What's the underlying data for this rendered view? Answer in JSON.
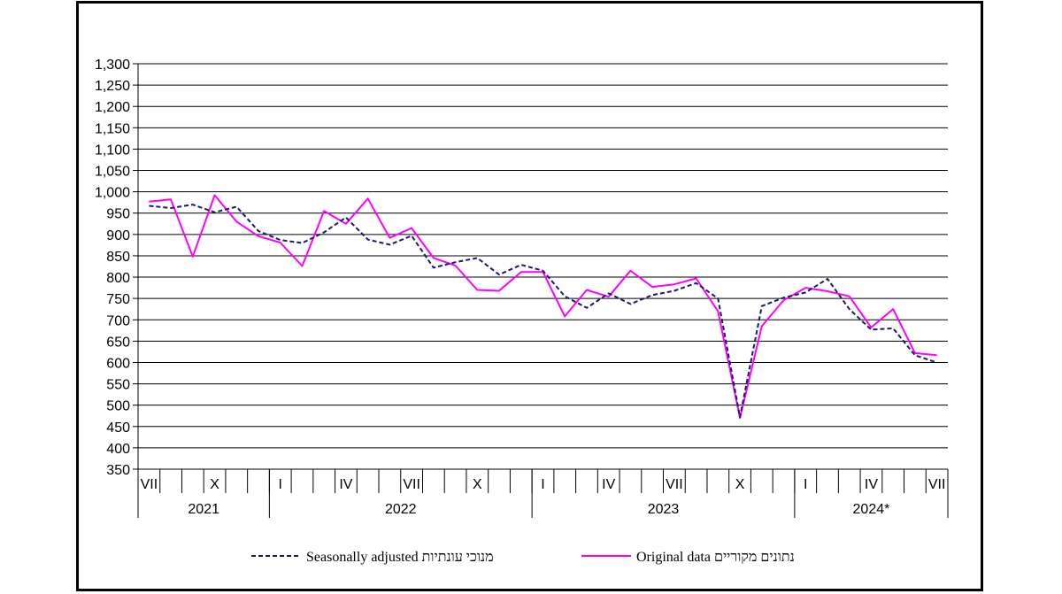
{
  "chart_data": {
    "type": "line",
    "ylim": [
      350,
      1300
    ],
    "y_ticks": [
      350,
      400,
      450,
      500,
      550,
      600,
      650,
      700,
      750,
      800,
      850,
      900,
      950,
      1000,
      1050,
      1100,
      1150,
      1200,
      1250,
      1300
    ],
    "y_tick_labels": [
      "350",
      "400",
      "450",
      "500",
      "550",
      "600",
      "650",
      "700",
      "750",
      "800",
      "850",
      "900",
      "950",
      "1,000",
      "1,050",
      "1,100",
      "1,150",
      "1,200",
      "1,250",
      "1,300"
    ],
    "x": [
      "2021-07",
      "2021-08",
      "2021-09",
      "2021-10",
      "2021-11",
      "2021-12",
      "2022-01",
      "2022-02",
      "2022-03",
      "2022-04",
      "2022-05",
      "2022-06",
      "2022-07",
      "2022-08",
      "2022-09",
      "2022-10",
      "2022-11",
      "2022-12",
      "2023-01",
      "2023-02",
      "2023-03",
      "2023-04",
      "2023-05",
      "2023-06",
      "2023-07",
      "2023-08",
      "2023-09",
      "2023-10",
      "2023-11",
      "2023-12",
      "2024-01",
      "2024-02",
      "2024-03",
      "2024-04",
      "2024-05",
      "2024-06",
      "2024-07"
    ],
    "month_labels": [
      {
        "month": "2021-07",
        "label": "VII"
      },
      {
        "month": "2021-10",
        "label": "X"
      },
      {
        "month": "2022-01",
        "label": "I"
      },
      {
        "month": "2022-04",
        "label": "IV"
      },
      {
        "month": "2022-07",
        "label": "VII"
      },
      {
        "month": "2022-10",
        "label": "X"
      },
      {
        "month": "2023-01",
        "label": "I"
      },
      {
        "month": "2023-04",
        "label": "IV"
      },
      {
        "month": "2023-07",
        "label": "VII"
      },
      {
        "month": "2023-10",
        "label": "X"
      },
      {
        "month": "2024-01",
        "label": "I"
      },
      {
        "month": "2024-04",
        "label": "IV"
      },
      {
        "month": "2024-07",
        "label": "VII"
      }
    ],
    "years": [
      {
        "label": "2021",
        "from": "2021-07",
        "to": "2021-12"
      },
      {
        "label": "2022",
        "from": "2022-01",
        "to": "2022-12"
      },
      {
        "label": "2023",
        "from": "2023-01",
        "to": "2023-12"
      },
      {
        "label": "2024*",
        "from": "2024-01",
        "to": "2024-07"
      }
    ],
    "grid": true,
    "legend_position": "bottom",
    "series": [
      {
        "name": "Seasonally adjusted מנוכי עונתיות",
        "style": "dashed",
        "color": "#1a1a6e",
        "values": [
          967,
          962,
          970,
          952,
          965,
          908,
          887,
          880,
          905,
          940,
          888,
          876,
          897,
          822,
          835,
          845,
          806,
          829,
          815,
          755,
          728,
          762,
          737,
          758,
          768,
          786,
          750,
          472,
          732,
          752,
          764,
          796,
          725,
          677,
          680,
          617,
          600
        ]
      },
      {
        "name": "Original data נתונים מקוריים",
        "style": "solid",
        "color": "#ff00ff",
        "values": [
          977,
          982,
          848,
          992,
          930,
          896,
          881,
          826,
          955,
          925,
          984,
          892,
          915,
          845,
          827,
          770,
          768,
          812,
          812,
          708,
          770,
          754,
          815,
          777,
          783,
          797,
          720,
          470,
          685,
          746,
          775,
          767,
          755,
          682,
          725,
          622,
          617
        ]
      }
    ]
  }
}
